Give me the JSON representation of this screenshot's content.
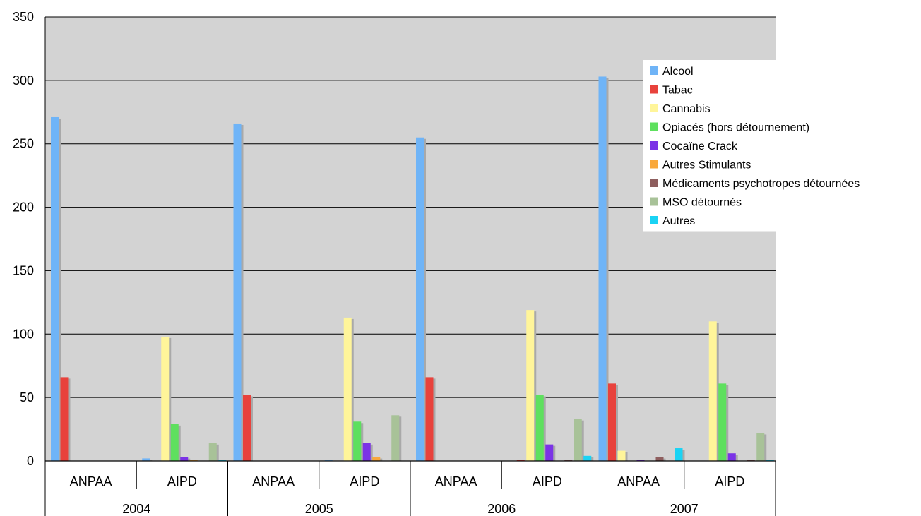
{
  "chart_data": {
    "type": "bar",
    "groups": [
      {
        "year": "2004",
        "categories": [
          "ANPAA",
          "AIPD"
        ]
      },
      {
        "year": "2005",
        "categories": [
          "ANPAA",
          "AIPD"
        ]
      },
      {
        "year": "2006",
        "categories": [
          "ANPAA",
          "AIPD"
        ]
      },
      {
        "year": "2007",
        "categories": [
          "ANPAA",
          "AIPD"
        ]
      }
    ],
    "categories": [
      "ANPAA",
      "AIPD",
      "ANPAA",
      "AIPD",
      "ANPAA",
      "AIPD",
      "ANPAA",
      "AIPD"
    ],
    "series": [
      {
        "name": "Alcool",
        "color": "#6fb4f7",
        "values": [
          271,
          2,
          266,
          1,
          255,
          0,
          303,
          0
        ]
      },
      {
        "name": "Tabac",
        "color": "#e8423c",
        "values": [
          66,
          0,
          52,
          0,
          66,
          1,
          61,
          0
        ]
      },
      {
        "name": "Cannabis",
        "color": "#fff59a",
        "values": [
          0,
          98,
          0,
          113,
          0,
          119,
          8,
          110
        ]
      },
      {
        "name": "Opiacés (hors détournement)",
        "color": "#5ee05e",
        "values": [
          0,
          29,
          0,
          31,
          0,
          52,
          0,
          61
        ]
      },
      {
        "name": "Cocaïne Crack",
        "color": "#7b33e6",
        "values": [
          0,
          3,
          0,
          14,
          0,
          13,
          1,
          6
        ]
      },
      {
        "name": "Autres Stimulants",
        "color": "#f9a83b",
        "values": [
          0,
          1,
          0,
          3,
          0,
          0,
          0,
          0
        ]
      },
      {
        "name": "Médicaments psychotropes détournées",
        "color": "#8e5e5e",
        "values": [
          0,
          0,
          0,
          0,
          0,
          1,
          3,
          1
        ]
      },
      {
        "name": "MSO détournés",
        "color": "#a8c298",
        "values": [
          0,
          14,
          0,
          36,
          0,
          33,
          0,
          22
        ]
      },
      {
        "name": "Autres",
        "color": "#1ad3f4",
        "values": [
          0,
          1,
          0,
          0,
          0,
          4,
          10,
          1
        ]
      }
    ],
    "ylim": [
      0,
      350
    ],
    "yticks": [
      "0",
      "50",
      "100",
      "150",
      "200",
      "250",
      "300",
      "350"
    ],
    "ytick_values": [
      0,
      50,
      100,
      150,
      200,
      250,
      300,
      350
    ],
    "grid": true,
    "legend_position": "top-right",
    "plot_background": "#d3d3d3"
  }
}
